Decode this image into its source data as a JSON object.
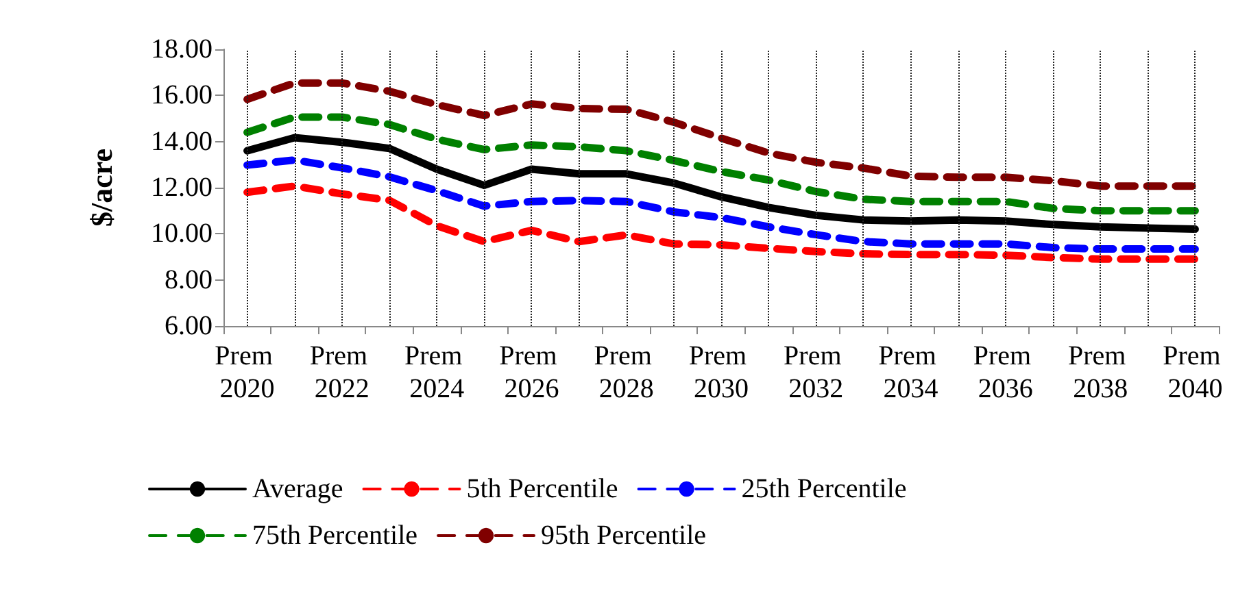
{
  "chart_data": {
    "type": "line",
    "ylabel": "$/acre",
    "categories": [
      "Prem 2020",
      null,
      "Prem 2022",
      null,
      "Prem 2024",
      null,
      "Prem 2026",
      null,
      "Prem 2028",
      null,
      "Prem 2030",
      null,
      "Prem 2032",
      null,
      "Prem 2034",
      null,
      "Prem 2036",
      null,
      "Prem 2038",
      null,
      "Prem 2040"
    ],
    "series": [
      {
        "name": "Average",
        "color": "#000000",
        "line_style": "solid",
        "values": [
          13.6,
          14.17,
          13.97,
          13.7,
          12.8,
          12.1,
          12.8,
          12.6,
          12.6,
          12.2,
          11.6,
          11.14,
          10.8,
          10.6,
          10.55,
          10.6,
          10.55,
          10.4,
          10.3,
          10.25,
          10.2
        ]
      },
      {
        "name": "5th Percentile",
        "color": "#ff0000",
        "line_style": "dashed",
        "values": [
          11.8,
          12.07,
          11.73,
          11.45,
          10.35,
          9.66,
          10.15,
          9.66,
          9.95,
          9.56,
          9.52,
          9.37,
          9.23,
          9.13,
          9.1,
          9.1,
          9.07,
          8.97,
          8.9,
          8.9,
          8.9
        ]
      },
      {
        "name": "25th Percentile",
        "color": "#0000ff",
        "line_style": "dashed",
        "values": [
          12.98,
          13.2,
          12.86,
          12.47,
          11.87,
          11.2,
          11.4,
          11.44,
          11.4,
          10.95,
          10.7,
          10.3,
          9.96,
          9.66,
          9.56,
          9.56,
          9.56,
          9.4,
          9.34,
          9.34,
          9.34
        ]
      },
      {
        "name": "75th Percentile",
        "color": "#008000",
        "line_style": "dashed",
        "values": [
          14.4,
          15.06,
          15.06,
          14.74,
          14.1,
          13.65,
          13.85,
          13.77,
          13.6,
          13.18,
          12.7,
          12.33,
          11.83,
          11.5,
          11.4,
          11.4,
          11.4,
          11.1,
          11.0,
          11.0,
          11.0
        ]
      },
      {
        "name": "95th Percentile",
        "color": "#800000",
        "line_style": "dashed",
        "values": [
          15.83,
          16.54,
          16.54,
          16.18,
          15.6,
          15.13,
          15.63,
          15.43,
          15.4,
          14.84,
          14.15,
          13.5,
          13.1,
          12.85,
          12.5,
          12.45,
          12.45,
          12.3,
          12.07,
          12.07,
          12.07
        ]
      }
    ],
    "ylim": [
      6,
      18
    ],
    "yticks": [
      {
        "value": 6,
        "label": "6.00"
      },
      {
        "value": 8,
        "label": "8.00"
      },
      {
        "value": 10,
        "label": "10.00"
      },
      {
        "value": 12,
        "label": "12.00"
      },
      {
        "value": 14,
        "label": "14.00"
      },
      {
        "value": 16,
        "label": "16.00"
      },
      {
        "value": 18,
        "label": "18.00"
      }
    ],
    "grid": "x",
    "legend": "bottom",
    "marker": "none"
  }
}
